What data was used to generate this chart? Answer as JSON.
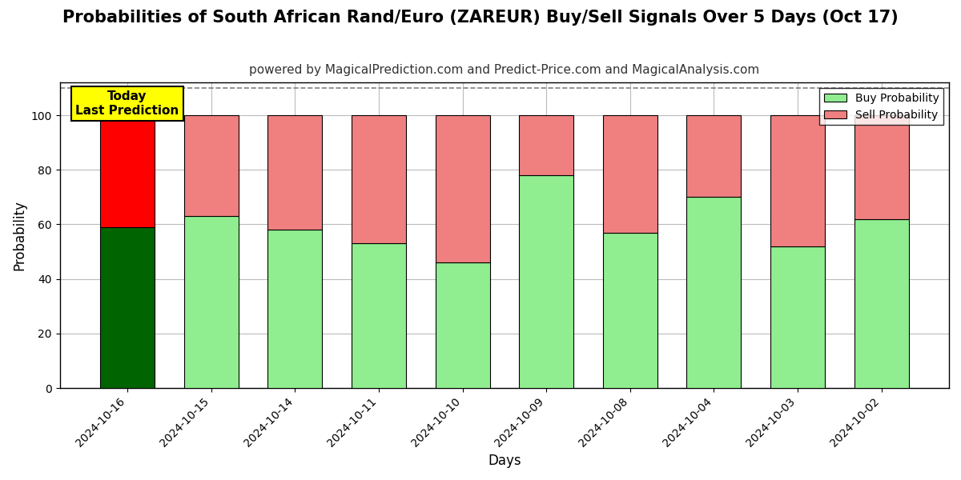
{
  "title": "Probabilities of South African Rand/Euro (ZAREUR) Buy/Sell Signals Over 5 Days (Oct 17)",
  "subtitle": "powered by MagicalPrediction.com and Predict-Price.com and MagicalAnalysis.com",
  "xlabel": "Days",
  "ylabel": "Probability",
  "categories": [
    "2024-10-16",
    "2024-10-15",
    "2024-10-14",
    "2024-10-11",
    "2024-10-10",
    "2024-10-09",
    "2024-10-08",
    "2024-10-04",
    "2024-10-03",
    "2024-10-02"
  ],
  "buy_values": [
    59,
    63,
    58,
    53,
    46,
    78,
    57,
    70,
    52,
    62
  ],
  "sell_values": [
    41,
    37,
    42,
    47,
    54,
    22,
    43,
    30,
    48,
    38
  ],
  "today_buy_color": "#006400",
  "today_sell_color": "#FF0000",
  "other_buy_color": "#90EE90",
  "other_sell_color": "#F08080",
  "today_label": "Today\nLast Prediction",
  "legend_buy": "Buy Probability",
  "legend_sell": "Sell Probability",
  "ylim_max": 112,
  "yticks": [
    0,
    20,
    40,
    60,
    80,
    100
  ],
  "dashed_line_y": 110,
  "background_color": "#ffffff",
  "grid_color": "#bbbbbb",
  "bar_edgecolor": "#000000",
  "bar_linewidth": 0.8,
  "title_fontsize": 15,
  "subtitle_fontsize": 11,
  "axis_label_fontsize": 12,
  "tick_fontsize": 10,
  "bar_width": 0.65
}
